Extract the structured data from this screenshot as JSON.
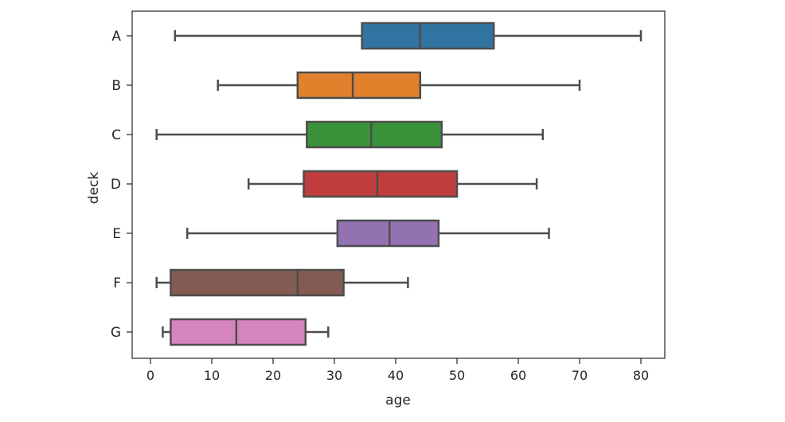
{
  "chart_data": {
    "type": "boxplot",
    "orientation": "horizontal",
    "title": "",
    "xlabel": "age",
    "ylabel": "deck",
    "xlim": [
      -3,
      84
    ],
    "xticks": [
      0,
      10,
      20,
      30,
      40,
      50,
      60,
      70,
      80
    ],
    "xtick_labels": [
      "0",
      "10",
      "20",
      "30",
      "40",
      "50",
      "60",
      "70",
      "80"
    ],
    "grid": false,
    "categories": [
      "A",
      "B",
      "C",
      "D",
      "E",
      "F",
      "G"
    ],
    "boxes": [
      {
        "category": "A",
        "whisker_low": 4,
        "q1": 34.5,
        "median": 44,
        "q3": 56,
        "whisker_high": 80,
        "color": "#3274a1"
      },
      {
        "category": "B",
        "whisker_low": 11,
        "q1": 24,
        "median": 33,
        "q3": 44,
        "whisker_high": 70,
        "color": "#e1812c"
      },
      {
        "category": "C",
        "whisker_low": 1,
        "q1": 25.5,
        "median": 36,
        "q3": 47.5,
        "whisker_high": 64,
        "color": "#3a923a"
      },
      {
        "category": "D",
        "whisker_low": 16,
        "q1": 25,
        "median": 37,
        "q3": 50,
        "whisker_high": 63,
        "color": "#c03d3e"
      },
      {
        "category": "E",
        "whisker_low": 6,
        "q1": 30.5,
        "median": 39,
        "q3": 47,
        "whisker_high": 65,
        "color": "#9372b2"
      },
      {
        "category": "F",
        "whisker_low": 1,
        "q1": 3.3,
        "median": 24,
        "q3": 31.5,
        "whisker_high": 42,
        "color": "#845b53"
      },
      {
        "category": "G",
        "whisker_low": 2,
        "q1": 3.3,
        "median": 14,
        "q3": 25.3,
        "whisker_high": 29,
        "color": "#d684bd"
      }
    ],
    "line_color": "#4d4d4d"
  }
}
